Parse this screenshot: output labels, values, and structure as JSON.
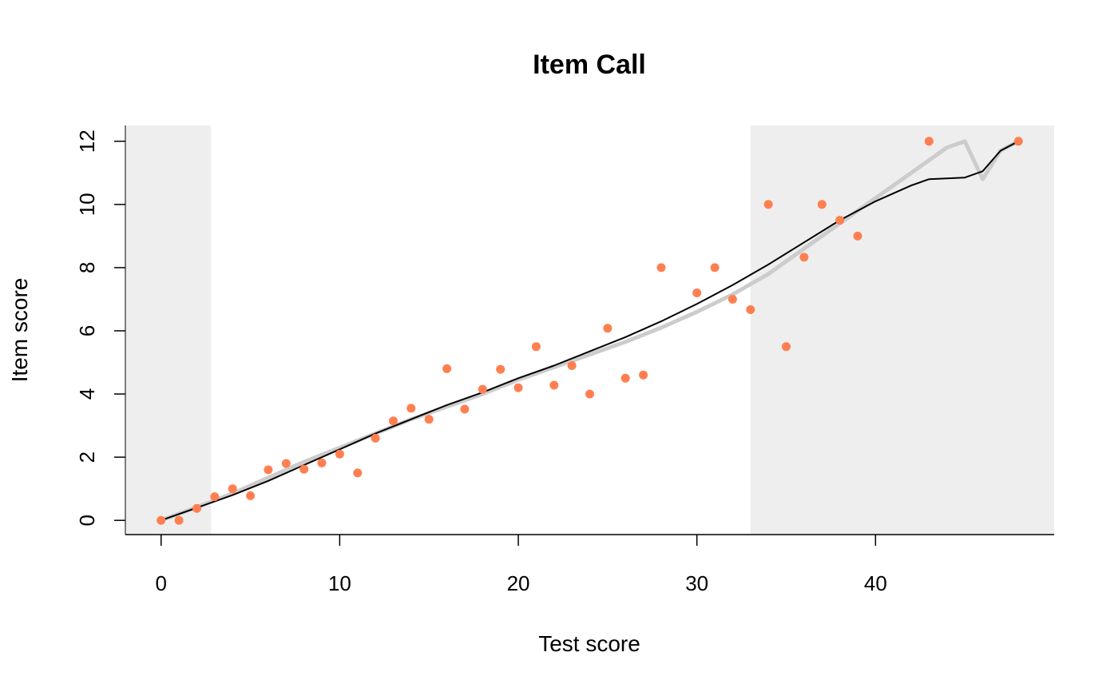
{
  "chart_data": {
    "type": "scatter",
    "title": "Item Call",
    "xlabel": "Test score",
    "ylabel": "Item score",
    "xlim": [
      -2,
      50
    ],
    "ylim": [
      -0.45,
      12.5
    ],
    "x_ticks": [
      0,
      10,
      20,
      30,
      40
    ],
    "y_ticks": [
      0,
      2,
      4,
      6,
      8,
      10,
      12
    ],
    "grid": false,
    "legend": "none",
    "shaded_regions": [
      {
        "x_from": -2,
        "x_to": 2.8
      },
      {
        "x_from": 33,
        "x_to": 50
      }
    ],
    "series": [
      {
        "kind": "points",
        "color": "#FF7F50",
        "x": [
          0,
          1,
          2,
          3,
          4,
          5,
          6,
          7,
          8,
          9,
          10,
          11,
          12,
          13,
          14,
          15,
          16,
          17,
          18,
          19,
          20,
          21,
          22,
          23,
          24,
          25,
          26,
          27,
          28,
          30,
          31,
          32,
          33,
          34,
          35,
          36,
          37,
          38,
          39,
          43,
          48
        ],
        "y": [
          0,
          0,
          0.38,
          0.75,
          1.0,
          0.78,
          1.6,
          1.8,
          1.62,
          1.82,
          2.1,
          1.5,
          2.6,
          3.15,
          3.55,
          3.2,
          4.8,
          3.52,
          4.15,
          4.78,
          4.2,
          5.5,
          4.28,
          4.9,
          4.0,
          6.08,
          4.5,
          4.6,
          8.0,
          7.2,
          8.0,
          7.0,
          6.67,
          10.0,
          5.5,
          8.33,
          10.0,
          9.5,
          9.0,
          12.0,
          12.0
        ]
      },
      {
        "kind": "line",
        "color": "#CCCCCC",
        "x": [
          0,
          2,
          4,
          6,
          8,
          10,
          12,
          14,
          16,
          18,
          20,
          22,
          24,
          26,
          28,
          30,
          32,
          34,
          36,
          38,
          40,
          42,
          44,
          45,
          46,
          47,
          48
        ],
        "y": [
          0,
          0.42,
          0.85,
          1.35,
          1.85,
          2.3,
          2.75,
          3.2,
          3.6,
          4.0,
          4.45,
          4.85,
          5.25,
          5.65,
          6.1,
          6.6,
          7.15,
          7.8,
          8.6,
          9.4,
          10.2,
          11.0,
          11.8,
          12.0,
          10.8,
          11.7,
          12.0
        ]
      },
      {
        "kind": "line",
        "color": "#000000",
        "x": [
          0,
          2,
          4,
          6,
          8,
          10,
          12,
          14,
          16,
          18,
          20,
          22,
          24,
          26,
          28,
          30,
          32,
          34,
          36,
          38,
          40,
          42,
          43,
          45,
          46,
          47,
          48
        ],
        "y": [
          0,
          0.4,
          0.8,
          1.25,
          1.75,
          2.25,
          2.75,
          3.2,
          3.65,
          4.05,
          4.5,
          4.9,
          5.35,
          5.8,
          6.3,
          6.85,
          7.45,
          8.1,
          8.8,
          9.5,
          10.1,
          10.6,
          10.8,
          10.85,
          11.05,
          11.7,
          12.0
        ]
      }
    ]
  }
}
